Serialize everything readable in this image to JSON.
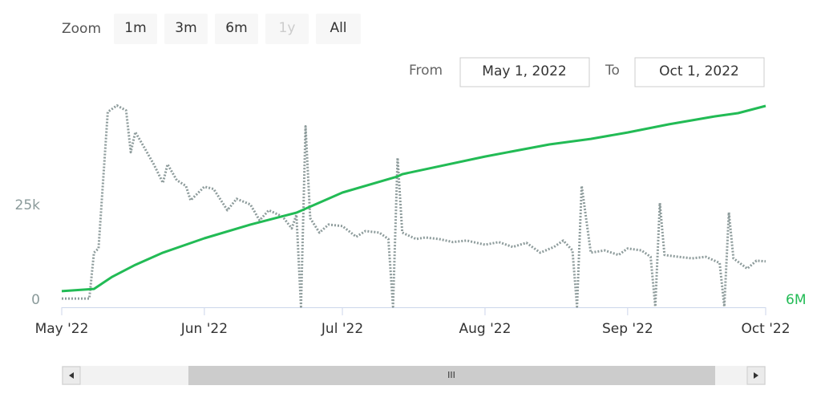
{
  "range_selector": {
    "zoom_label": "Zoom",
    "buttons": [
      "1m",
      "3m",
      "6m",
      "1y",
      "All"
    ],
    "from_label": "From",
    "from": "May 1, 2022",
    "to_label": "To",
    "to": "Oct 1, 2022"
  },
  "navigator": {
    "thumb_label": "III"
  },
  "chart_data": {
    "type": "line",
    "xlim": [
      "2022-05-01",
      "2022-10-01"
    ],
    "xticks": [
      {
        "value": "2022-05-01",
        "label": "May '22"
      },
      {
        "value": "2022-06-01",
        "label": "Jun '22"
      },
      {
        "value": "2022-07-01",
        "label": "Jul '22"
      },
      {
        "value": "2022-08-01",
        "label": "Aug '22"
      },
      {
        "value": "2022-09-01",
        "label": "Sep '22"
      },
      {
        "value": "2022-10-01",
        "label": "Oct '22"
      }
    ],
    "ylim": [
      0,
      55000
    ],
    "yticks": [
      0,
      {
        "value": 25000,
        "label": "25k"
      }
    ],
    "y2lim": [
      6000000,
      7100000
    ],
    "y2ticks": [
      {
        "value": 6000000,
        "label": "6M"
      }
    ],
    "series": [
      {
        "color": "#8e9c9c",
        "dash": true,
        "x": [
          "2022-05-01",
          "2022-05-07",
          "2022-05-08",
          "2022-05-09",
          "2022-05-11",
          "2022-05-13",
          "2022-05-15",
          "2022-05-16",
          "2022-05-17",
          "2022-05-19",
          "2022-05-21",
          "2022-05-23",
          "2022-05-24",
          "2022-05-26",
          "2022-05-28",
          "2022-05-29",
          "2022-06-01",
          "2022-06-03",
          "2022-06-06",
          "2022-06-08",
          "2022-06-11",
          "2022-06-13",
          "2022-06-15",
          "2022-06-18",
          "2022-06-20",
          "2022-06-21",
          "2022-06-22",
          "2022-06-23",
          "2022-06-24",
          "2022-06-26",
          "2022-06-28",
          "2022-07-01",
          "2022-07-04",
          "2022-07-06",
          "2022-07-09",
          "2022-07-11",
          "2022-07-12",
          "2022-07-13",
          "2022-07-14",
          "2022-07-17",
          "2022-07-19",
          "2022-07-22",
          "2022-07-25",
          "2022-07-28",
          "2022-08-01",
          "2022-08-04",
          "2022-08-07",
          "2022-08-10",
          "2022-08-13",
          "2022-08-16",
          "2022-08-18",
          "2022-08-20",
          "2022-08-21",
          "2022-08-22",
          "2022-08-24",
          "2022-08-27",
          "2022-08-30",
          "2022-09-01",
          "2022-09-04",
          "2022-09-06",
          "2022-09-07",
          "2022-09-08",
          "2022-09-09",
          "2022-09-12",
          "2022-09-15",
          "2022-09-18",
          "2022-09-21",
          "2022-09-22",
          "2022-09-23",
          "2022-09-24",
          "2022-09-27",
          "2022-09-29",
          "2022-10-01"
        ],
        "values": [
          2300,
          2300,
          14400,
          15500,
          51500,
          53200,
          51900,
          40900,
          46200,
          42000,
          37700,
          32800,
          37700,
          33500,
          32000,
          28200,
          31800,
          31200,
          25600,
          28600,
          27100,
          22900,
          25600,
          23900,
          20800,
          24400,
          200,
          47700,
          23500,
          19700,
          21800,
          21400,
          18600,
          20100,
          19700,
          18000,
          200,
          39400,
          19700,
          18000,
          18400,
          18000,
          17200,
          17600,
          16500,
          17200,
          15900,
          17000,
          14400,
          15900,
          17600,
          15000,
          200,
          32000,
          14400,
          15000,
          13800,
          15500,
          15000,
          13300,
          200,
          27500,
          13800,
          13300,
          12900,
          13300,
          11700,
          200,
          25000,
          12900,
          10200,
          12300,
          12100
        ]
      },
      {
        "color": "#22bb55",
        "axis": "y2",
        "x": [
          "2022-05-01",
          "2022-05-08",
          "2022-05-12",
          "2022-05-17",
          "2022-05-23",
          "2022-06-01",
          "2022-06-11",
          "2022-06-21",
          "2022-07-01",
          "2022-07-13",
          "2022-07-14",
          "2022-08-01",
          "2022-08-15",
          "2022-08-24",
          "2022-09-01",
          "2022-09-10",
          "2022-09-20",
          "2022-09-25",
          "2022-10-01"
        ],
        "values": [
          6085000,
          6097000,
          6161000,
          6224000,
          6288000,
          6364000,
          6436000,
          6499000,
          6605000,
          6690000,
          6702000,
          6795000,
          6859000,
          6888000,
          6922000,
          6965000,
          7007000,
          7024000,
          7062000
        ]
      }
    ]
  }
}
